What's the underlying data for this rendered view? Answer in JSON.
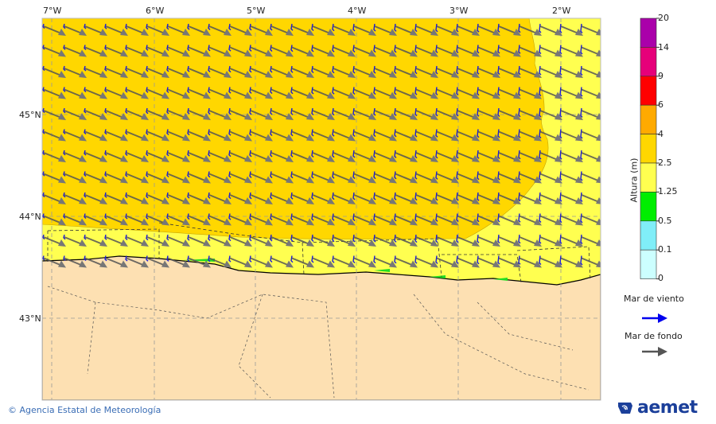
{
  "map": {
    "lon_labels": [
      "7°W",
      "6°W",
      "5°W",
      "4°W",
      "3°W",
      "2°W"
    ],
    "lat_labels": [
      "45°N",
      "44°N",
      "43°N"
    ],
    "colors": {
      "sea_high": "#ffd700",
      "sea_mid": "#ffff50",
      "green": "#22dd22",
      "land": "#fde0b2",
      "wind_arrow": "#1a1adc",
      "swell_arrow": "#707070"
    }
  },
  "legend": {
    "title": "Altura (m)",
    "ticks": [
      "20",
      "14",
      "9",
      "6",
      "4",
      "2.5",
      "1.25",
      "0.5",
      "0.1",
      "0"
    ],
    "colors": [
      "#aa00aa",
      "#e6007a",
      "#ff0000",
      "#ffaa00",
      "#ffd700",
      "#ffff50",
      "#00ee00",
      "#80eef8",
      "#ccffff"
    ],
    "wind_sea_label": "Mar de viento",
    "swell_label": "Mar de fondo",
    "wind_sea_color": "#0000ee",
    "swell_color": "#555555"
  },
  "footer": {
    "credit": "© Agencia Estatal de Meteorología",
    "logo_text": "aemet"
  }
}
